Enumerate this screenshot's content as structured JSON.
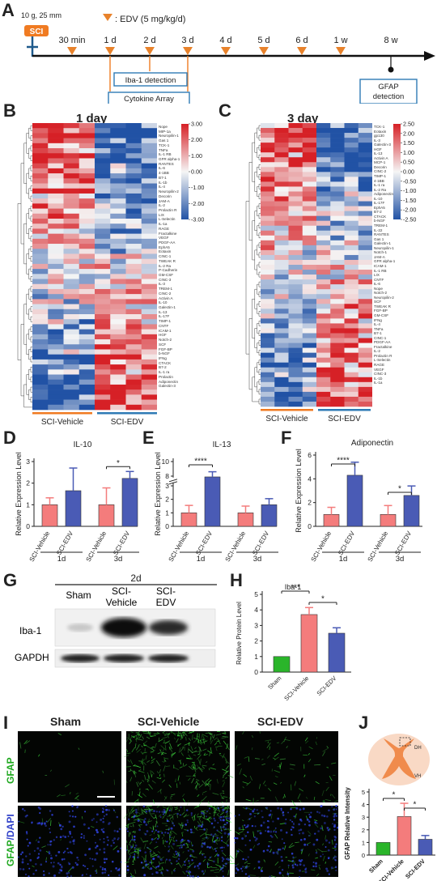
{
  "panels": {
    "A": "A",
    "B": "B",
    "C": "C",
    "D": "D",
    "E": "E",
    "F": "F",
    "G": "G",
    "H": "H",
    "I": "I",
    "J": "J"
  },
  "timeline": {
    "injury_label": "SCI",
    "injury_params": "10 g, 25 mm",
    "legend": ": EDV (5 mg/kg/d)",
    "timepoints": [
      "30 min",
      "1 d",
      "2 d",
      "3 d",
      "4 d",
      "5 d",
      "6 d",
      "1 w",
      "8 w"
    ],
    "iba_box": "Iba-1 detection",
    "cytokine_box": "Cytokine Array",
    "gfap_box_line1": "GFAP",
    "gfap_box_line2": "detection",
    "colors": {
      "accent": "#f07b22",
      "arrow": "#e8822b",
      "box": "#2f7bb5"
    }
  },
  "heatmap_1day": {
    "title": "1 day",
    "scale": [
      "3.00",
      "2.00",
      "1.00",
      "0.00",
      "-1.00",
      "-2.00",
      "-3.00"
    ],
    "groups": [
      "SCI-Vehicle",
      "SCI-EDV"
    ],
    "genes": [
      "Nope",
      "MIP-1a",
      "Neuropilin-1",
      "Gas 1",
      "TCK-1",
      "TNFa",
      "IL-1 RB",
      "GFR alpha-1",
      "RANTES",
      "IL-6",
      "4-1BB",
      "B7-1",
      "IL-1b",
      "IL-4",
      "Neuropilin-2",
      "Decorin",
      "JAM-A",
      "IL-2",
      "Prolactin R",
      "LIX",
      "L-Selectin",
      "IL-1a",
      "RAGE",
      "Fractalkine",
      "VEGF",
      "PDGF-AA",
      "EphA5",
      "Eotaxin",
      "CINC-1",
      "TWEAK R",
      "IL-2 Ra",
      "P-Cadherin",
      "GM-CSF",
      "CINC-3",
      "IL-3",
      "TREM-1",
      "CINC-2",
      "Activin A",
      "IL-10",
      "Galectin-1",
      "IL-13",
      "IL-17F",
      "TIMP-1",
      "CNTF",
      "ICAM-1",
      "HGF",
      "Notch-2",
      "SCF",
      "FGF-BP",
      "b-NGF",
      "IFNg",
      "CTACK",
      "B7-2",
      "IL-1 ra",
      "Prolactin",
      "Adiponectin",
      "Galectin-3"
    ]
  },
  "heatmap_3day": {
    "title": "3 day",
    "scale": [
      "2.50",
      "2.00",
      "1.50",
      "1.00",
      "0.50",
      "0.00",
      "-0.50",
      "-1.00",
      "-1.50",
      "-2.00",
      "-2.50"
    ],
    "groups": [
      "SCI-Vehicle",
      "SCI-EDV"
    ],
    "genes": [
      "TCK-1",
      "Eotaxin",
      "gp130",
      "IL-3",
      "Galectin-3",
      "HGF",
      "IL-13",
      "Activin A",
      "MCP-1",
      "Decorin",
      "CINC-2",
      "TIMP-1",
      "4-1BB",
      "IL-1 ra",
      "IL-2 Ra",
      "Adiponectin",
      "IL-10",
      "IL-17F",
      "EphA5",
      "B7-2",
      "CTACK",
      "b-NGF",
      "TREM-1",
      "IL-22",
      "RANTES",
      "Gas 1",
      "Galectin-1",
      "Neuropilin-1",
      "Notch-1",
      "JAM-A",
      "GFR alpha-1",
      "ICAM-1",
      "IL-1 RB",
      "LIX",
      "CNTF",
      "IL-6",
      "Nope",
      "Notch-2",
      "Neuropilin-2",
      "SCF",
      "TWEAK R",
      "FGF-BP",
      "GM-CSF",
      "IFNg",
      "IL-4",
      "TNFa",
      "B7-1",
      "CINC-1",
      "PDGF-AA",
      "Fractalkine",
      "IL-2",
      "Prolactin R",
      "L-Selectin",
      "RAGE",
      "VEGF",
      "CINC-3",
      "IL-1b",
      "IL-1a"
    ]
  },
  "chart_data": [
    {
      "panel": "D",
      "type": "bar",
      "title": "IL-10",
      "ylabel": "Relative Expression Level",
      "ylim": [
        0,
        3
      ],
      "yticks": [
        "0",
        "1",
        "2",
        "3"
      ],
      "categories": [
        "SCI-Vehicle",
        "SCI-EDV",
        "SCI-Vehicle",
        "SCI-EDV"
      ],
      "groups": [
        "1d",
        "3d"
      ],
      "values": [
        1.0,
        1.65,
        1.0,
        2.22
      ],
      "errors": [
        0.32,
        1.05,
        0.78,
        0.32
      ],
      "significance": [
        {
          "pair": [
            2,
            3
          ],
          "label": "*"
        }
      ]
    },
    {
      "panel": "E",
      "type": "bar",
      "title": "IL-13",
      "ylabel": "Relative Expression Level",
      "ylim": [
        0,
        10
      ],
      "yticks": [
        "0",
        "1",
        "2",
        "3",
        "8",
        "10"
      ],
      "axis_break": true,
      "categories": [
        "SCI-Vehicle",
        "SCI-EDV",
        "SCI-Vehicle",
        "SCI-EDV"
      ],
      "groups": [
        "1d",
        "3d"
      ],
      "values": [
        1.0,
        7.6,
        1.0,
        1.6
      ],
      "errors": [
        0.55,
        1.0,
        0.5,
        0.45
      ],
      "significance": [
        {
          "pair": [
            0,
            1
          ],
          "label": "****"
        }
      ]
    },
    {
      "panel": "F",
      "type": "bar",
      "title": "Adiponectin",
      "ylabel": "Relative Expression Level",
      "ylim": [
        0,
        6
      ],
      "yticks": [
        "0",
        "2",
        "4",
        "6"
      ],
      "categories": [
        "SCI-Vehicle",
        "SCI-EDV",
        "SCI-Vehicle",
        "SCI-EDV"
      ],
      "groups": [
        "1d",
        "3d"
      ],
      "values": [
        1.0,
        4.3,
        1.0,
        2.6
      ],
      "errors": [
        0.6,
        1.1,
        0.75,
        0.8
      ],
      "significance": [
        {
          "pair": [
            0,
            1
          ],
          "label": "****"
        },
        {
          "pair": [
            2,
            3
          ],
          "label": "*"
        }
      ]
    },
    {
      "panel": "H",
      "type": "bar",
      "title": "Iba-1",
      "ylabel": "Relative Protein Level",
      "ylim": [
        0,
        5
      ],
      "yticks": [
        "0",
        "1",
        "2",
        "3",
        "4",
        "5"
      ],
      "categories": [
        "Sham",
        "SCI-Vehicle",
        "SCI-EDV"
      ],
      "values": [
        1.0,
        3.7,
        2.5
      ],
      "errors": [
        0.0,
        0.45,
        0.35
      ],
      "colors": [
        "#2ab52a",
        "#f47c7c",
        "#4a5bb5"
      ],
      "significance": [
        {
          "pair": [
            0,
            1
          ],
          "label": "***"
        },
        {
          "pair": [
            1,
            2
          ],
          "label": "*"
        }
      ]
    },
    {
      "panel": "J",
      "type": "bar",
      "title": "",
      "ylabel": "GFAP Relative Intensity",
      "ylim": [
        0,
        5
      ],
      "yticks": [
        "0",
        "1",
        "2",
        "3",
        "4",
        "5"
      ],
      "categories": [
        "Sham",
        "SCI-Vehicle",
        "SCI-EDV"
      ],
      "values": [
        1.0,
        3.05,
        1.25
      ],
      "errors": [
        0.0,
        1.05,
        0.3
      ],
      "colors": [
        "#2ab52a",
        "#f47c7c",
        "#4a5bb5"
      ],
      "significance": [
        {
          "pair": [
            0,
            1
          ],
          "label": "*"
        },
        {
          "pair": [
            1,
            2
          ],
          "label": "*"
        }
      ]
    }
  ],
  "western_blot": {
    "time": "2d",
    "lanes": [
      "Sham",
      "SCI-\nVehicle",
      "SCI-\nEDV"
    ],
    "lane1": "Sham",
    "lane2a": "SCI-",
    "lane2b": "Vehicle",
    "lane3a": "SCI-",
    "lane3b": "EDV",
    "rows": [
      "Iba-1",
      "GAPDH"
    ]
  },
  "micrographs": {
    "columns": [
      "Sham",
      "SCI-Vehicle",
      "SCI-EDV"
    ],
    "row1": "GFAP",
    "row2_green": "GFAP",
    "row2_blue": "/DAPI"
  },
  "cord_diagram": {
    "dh": "DH",
    "vh": "VH"
  }
}
